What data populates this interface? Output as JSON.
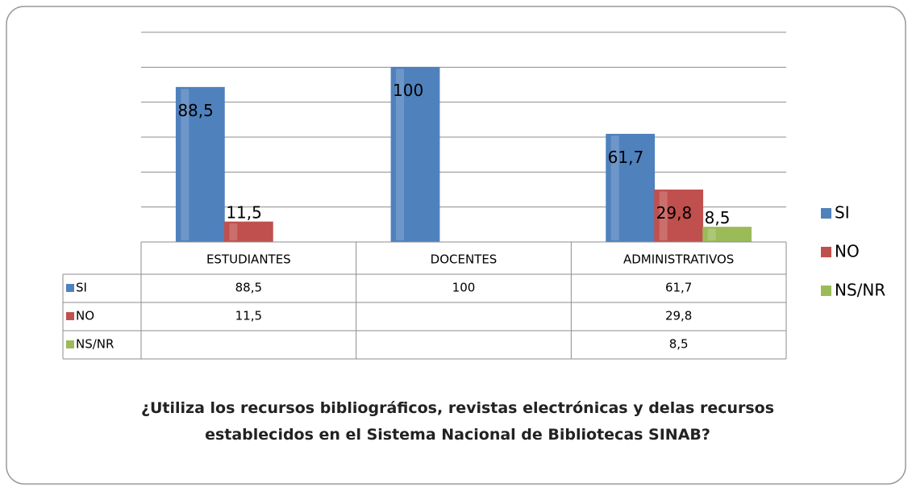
{
  "chart_data": {
    "type": "bar",
    "title": "¿Utiliza los recursos bibliográficos, revistas electrónicas y delas recursos establecidos en el Sistema Nacional de Bibliotecas SINAB?",
    "categories": [
      "ESTUDIANTES",
      "DOCENTES",
      "ADMINISTRATIVOS"
    ],
    "series": [
      {
        "name": "SI",
        "color": "#4f81bd",
        "values": [
          88.5,
          100,
          61.7
        ],
        "value_labels": [
          "88,5",
          "100",
          "61,7"
        ]
      },
      {
        "name": "NO",
        "color": "#c0504d",
        "values": [
          11.5,
          null,
          29.8
        ],
        "value_labels": [
          "11,5",
          null,
          "29,8"
        ]
      },
      {
        "name": "NS/NR",
        "color": "#9bbb59",
        "values": [
          null,
          null,
          8.5
        ],
        "value_labels": [
          null,
          null,
          "8,5"
        ]
      }
    ],
    "ylim": [
      0,
      120
    ],
    "yticks": [
      0,
      20,
      40,
      60,
      80,
      100,
      120
    ],
    "grid": true,
    "legend": "right",
    "data_table": true
  }
}
